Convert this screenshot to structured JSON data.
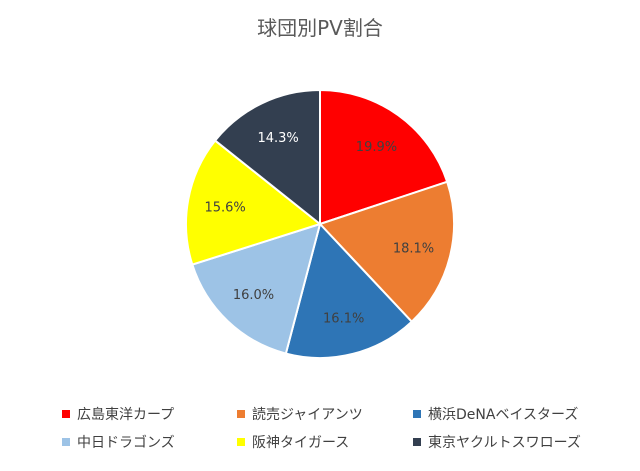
{
  "chart_data": {
    "type": "pie",
    "title": "球団別PV割合",
    "categories": [
      "広島東洋カープ",
      "読売ジャイアンツ",
      "横浜DeNAベイスターズ",
      "中日ドラゴンズ",
      "阪神タイガース",
      "東京ヤクルトスワローズ"
    ],
    "values": [
      19.9,
      18.1,
      16.1,
      16.0,
      15.6,
      14.3
    ],
    "labels": [
      "19.9%",
      "18.1%",
      "16.1%",
      "16.0%",
      "15.6%",
      "14.3%"
    ],
    "colors": [
      "#FF0000",
      "#ED7D31",
      "#2E75B6",
      "#9DC3E6",
      "#FFFF00",
      "#333F50"
    ],
    "label_colors": [
      "#404040",
      "#404040",
      "#404040",
      "#404040",
      "#404040",
      "#FFFFFF"
    ],
    "legend_placement": "bottom"
  }
}
